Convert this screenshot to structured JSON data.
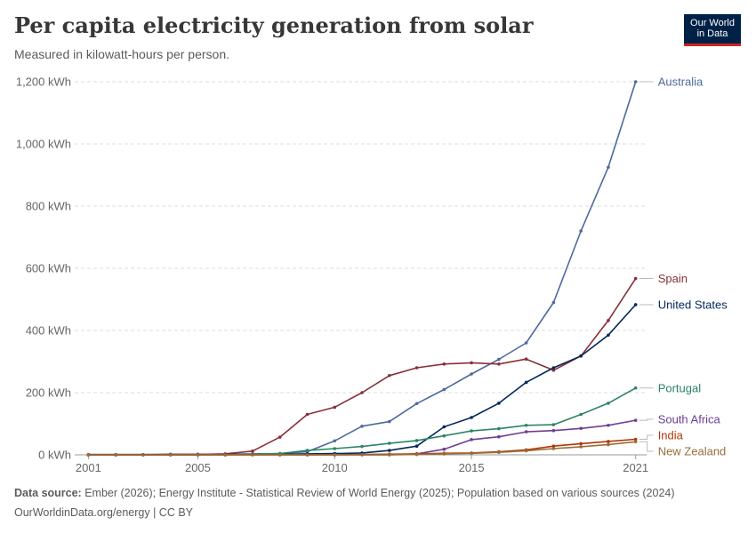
{
  "header": {
    "title": "Per capita electricity generation from solar",
    "subtitle": "Measured in kilowatt-hours per person.",
    "logo_line1": "Our World",
    "logo_line2": "in Data"
  },
  "footer": {
    "source_label": "Data source:",
    "source_text": "Ember (2026); Energy Institute - Statistical Review of World Energy (2025); Population based on various sources (2024)",
    "url_text": "OurWorldinData.org/energy | CC BY"
  },
  "chart_data": {
    "type": "line",
    "title": "Per capita electricity generation from solar",
    "subtitle": "Measured in kilowatt-hours per person.",
    "xlabel": "",
    "ylabel": "",
    "xlim": [
      2000.5,
      2021.4
    ],
    "ylim": [
      0,
      1200
    ],
    "x_ticks": [
      2001,
      2005,
      2010,
      2015,
      2021
    ],
    "y_ticks": [
      0,
      200,
      400,
      600,
      800,
      1000,
      1200
    ],
    "y_tick_labels": [
      "0 kWh",
      "200 kWh",
      "400 kWh",
      "600 kWh",
      "800 kWh",
      "1,000 kWh",
      "1,200 kWh"
    ],
    "grid": "horizontal dashed",
    "legend": "right end labels",
    "x": [
      2000,
      2001,
      2002,
      2003,
      2004,
      2005,
      2006,
      2007,
      2008,
      2009,
      2010,
      2011,
      2012,
      2013,
      2014,
      2015,
      2016,
      2017,
      2018,
      2019,
      2020,
      2021
    ],
    "series": [
      {
        "name": "Australia",
        "color": "#4c6a9c",
        "values": [
          1,
          1,
          1,
          1,
          2,
          2,
          2,
          3,
          4,
          10,
          45,
          92,
          107,
          165,
          210,
          260,
          307,
          360,
          490,
          720,
          925,
          1200
        ]
      },
      {
        "name": "Spain",
        "color": "#883039",
        "values": [
          0,
          0,
          0,
          0,
          1,
          1,
          3,
          12,
          57,
          130,
          153,
          200,
          255,
          280,
          292,
          296,
          292,
          308,
          272,
          318,
          432,
          567
        ]
      },
      {
        "name": "United States",
        "color": "#00295b",
        "values": [
          0,
          0,
          0,
          0,
          0,
          0,
          1,
          1,
          2,
          3,
          4,
          6,
          14,
          28,
          90,
          120,
          166,
          233,
          280,
          318,
          385,
          483
        ]
      },
      {
        "name": "Portugal",
        "color": "#2c8465",
        "values": [
          0,
          0,
          0,
          0,
          0,
          0,
          0,
          2,
          4,
          14,
          20,
          27,
          37,
          46,
          61,
          77,
          84,
          95,
          97,
          130,
          166,
          215
        ]
      },
      {
        "name": "South Africa",
        "color": "#6d3e91",
        "values": [
          0,
          0,
          0,
          0,
          0,
          0,
          0,
          0,
          0,
          0,
          0,
          0,
          0,
          3,
          18,
          49,
          58,
          74,
          78,
          85,
          95,
          111
        ]
      },
      {
        "name": "India",
        "color": "#b13507",
        "values": [
          0,
          0,
          0,
          0,
          0,
          0,
          0,
          0,
          0,
          0,
          0,
          1,
          2,
          3,
          5,
          6,
          10,
          16,
          28,
          36,
          43,
          50
        ]
      },
      {
        "name": "New Zealand",
        "color": "#996d39",
        "values": [
          0,
          0,
          0,
          0,
          0,
          0,
          0,
          0,
          0,
          0,
          0,
          0,
          0,
          1,
          3,
          5,
          8,
          13,
          20,
          26,
          33,
          42
        ]
      }
    ]
  }
}
